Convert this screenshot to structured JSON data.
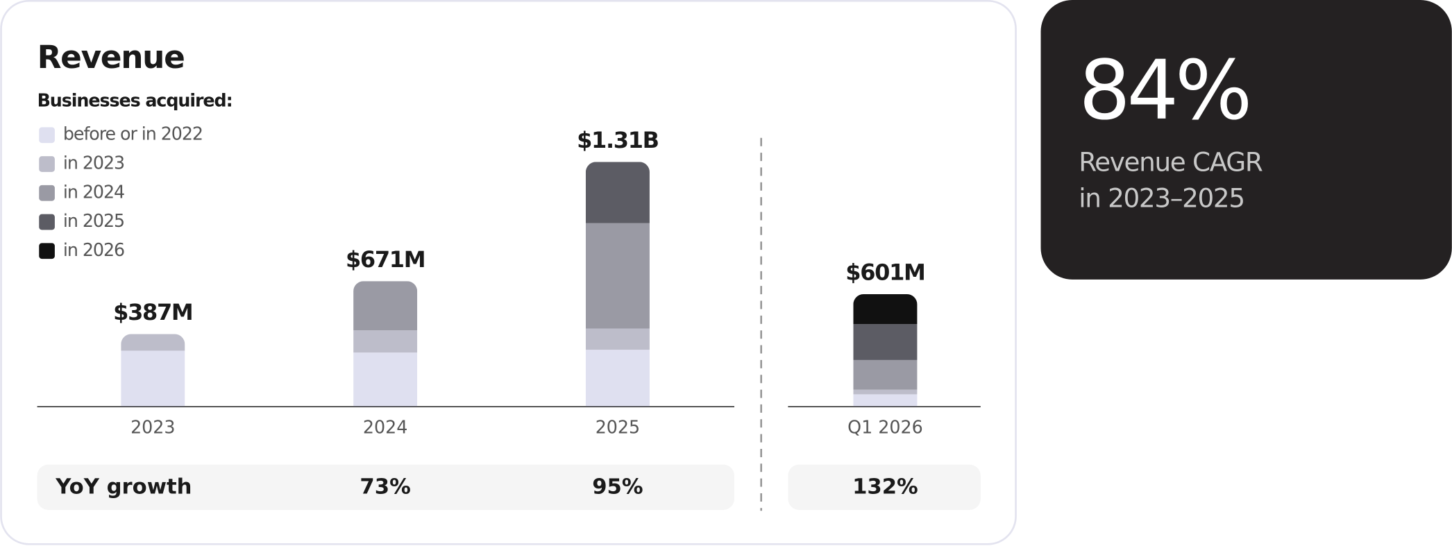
{
  "chart_data": {
    "type": "stacked-bar",
    "title": "Revenue",
    "legend_title": "Businesses acquired:",
    "categories": [
      "2023",
      "2024",
      "2025",
      "Q1 2026"
    ],
    "series": [
      {
        "name": "before or in 2022",
        "color": "#dfe0f0",
        "values": [
          298,
          288,
          303,
          64
        ]
      },
      {
        "name": "in 2023",
        "color": "#bdbdca",
        "values": [
          89,
          119,
          114,
          25
        ]
      },
      {
        "name": "in 2024",
        "color": "#9a9aa4",
        "values": [
          0,
          264,
          565,
          159
        ]
      },
      {
        "name": "in 2025",
        "color": "#5c5c64",
        "values": [
          0,
          0,
          328,
          193
        ]
      },
      {
        "name": "in 2026",
        "color": "#111111",
        "values": [
          0,
          0,
          0,
          160
        ]
      }
    ],
    "totals": {
      "values": [
        387,
        671,
        1310,
        601
      ],
      "value_labels": [
        "$387M",
        "$671M",
        "$1.31B",
        "$601M"
      ]
    },
    "yoy": {
      "label": "YoY growth",
      "values": [
        null,
        73,
        95,
        132
      ],
      "value_labels": [
        null,
        "73%",
        "95%",
        "132%"
      ]
    }
  },
  "kpi": {
    "value": 84,
    "value_label": "84%",
    "caption_lines": [
      "Revenue CAGR",
      "in 2023–2025"
    ]
  }
}
